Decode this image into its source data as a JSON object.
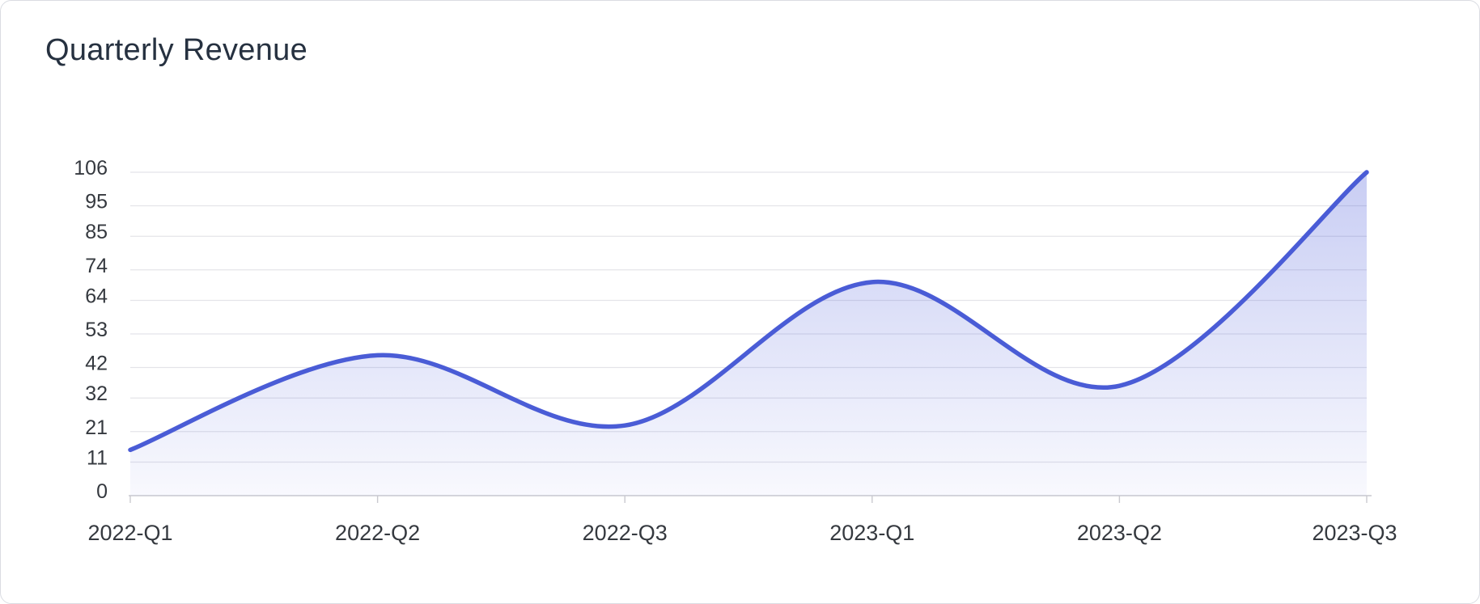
{
  "chart_data": {
    "type": "area",
    "title": "Quarterly Revenue",
    "categories": [
      "2022-Q1",
      "2022-Q2",
      "2022-Q3",
      "2023-Q1",
      "2023-Q2",
      "2023-Q3"
    ],
    "values": [
      15,
      46,
      23,
      70,
      36,
      106
    ],
    "xlabel": "",
    "ylabel": "",
    "ylim": [
      0,
      106
    ],
    "y_ticks": [
      0,
      11,
      21,
      32,
      42,
      53,
      64,
      74,
      85,
      95,
      106
    ],
    "grid": "horizontal-only",
    "legend": "none",
    "smooth": true,
    "colors": {
      "line": "#4a5cd6",
      "area_top": "rgba(85,100,220,0.32)",
      "area_bottom": "rgba(85,100,220,0.04)",
      "gridline": "#e4e4e9",
      "axis_line": "#c9c9cf",
      "title_text": "#263140",
      "label_text": "#35393f"
    }
  }
}
